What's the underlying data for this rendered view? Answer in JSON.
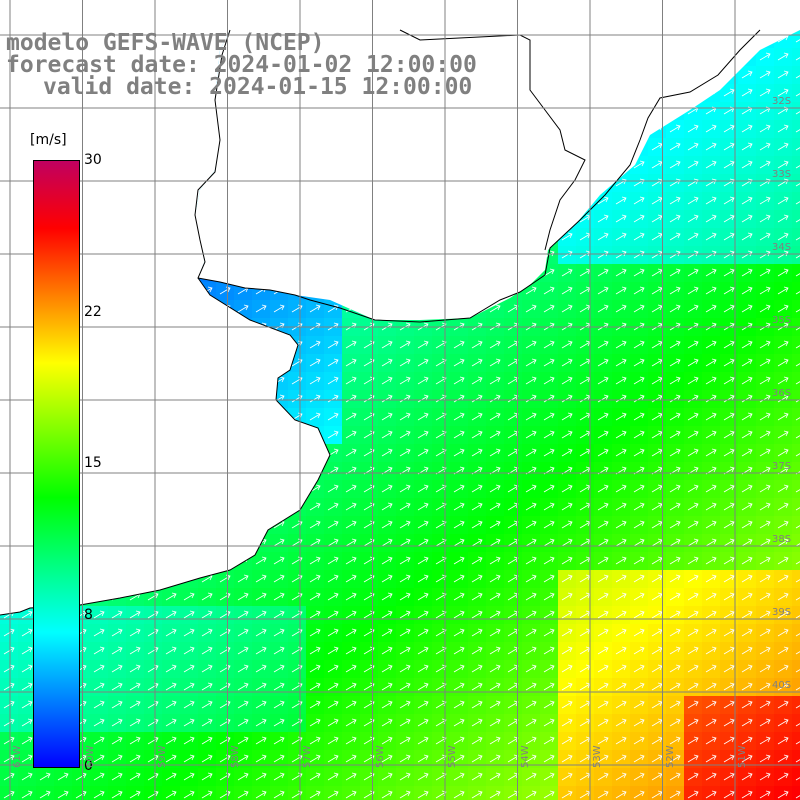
{
  "title": {
    "line1": "modelo GEFS-WAVE (NCEP)",
    "line2": "forecast date: 2024-01-02 12:00:00",
    "line3": "valid date: 2024-01-15 12:00:00"
  },
  "colorbar": {
    "unit": "[m/s]",
    "min": 0,
    "max": 30,
    "tick_labels": [
      "30",
      "22",
      "15",
      "8",
      "0"
    ],
    "tick_values": [
      30,
      22.5,
      15,
      7.5,
      0
    ],
    "colors": [
      "#0000ff",
      "#0080ff",
      "#00ffff",
      "#00ff80",
      "#00ff00",
      "#80ff00",
      "#ffff00",
      "#ff8000",
      "#ff0000",
      "#c00060"
    ]
  },
  "map": {
    "lon_range": [
      -61,
      -50
    ],
    "lat_range": [
      -41,
      -31
    ],
    "lat_labels": [
      "32S",
      "33S",
      "34S",
      "35S",
      "36S",
      "37S",
      "38S",
      "39S",
      "40S"
    ],
    "lon_labels": [
      "61W",
      "60W",
      "59W",
      "58W",
      "57W",
      "56W",
      "55W",
      "54W",
      "53W",
      "52W",
      "51W"
    ],
    "land_color": "#ffffff",
    "coast_color": "#000000",
    "grid_color": "#808080"
  }
}
